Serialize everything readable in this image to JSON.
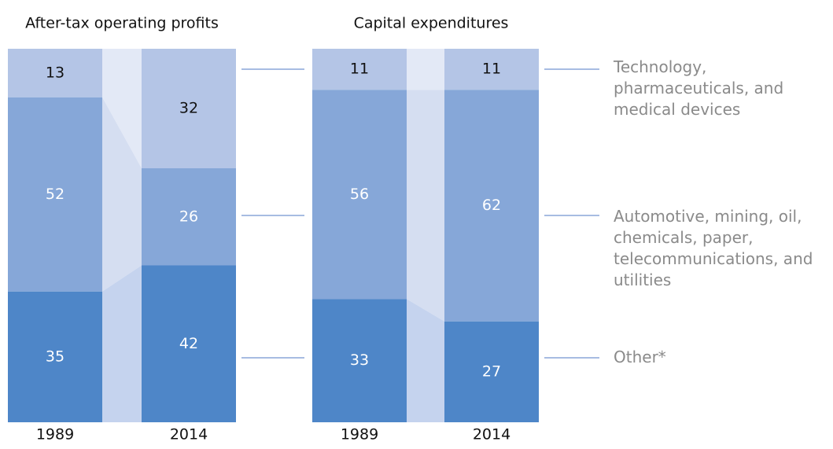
{
  "charts": [
    {
      "type": "stacked_bar",
      "title": "After-tax operating profits",
      "categories": [
        "1989",
        "2014"
      ],
      "ylim": [
        0,
        100
      ],
      "connector_colors": [
        "#e3e9f6",
        "#d5def1",
        "#c5d3ee"
      ],
      "series": [
        {
          "color": "#b4c5e6",
          "values": [
            13,
            32
          ]
        },
        {
          "color": "#86a7d8",
          "values": [
            52,
            26
          ]
        },
        {
          "color": "#4e86c8",
          "values": [
            35,
            42
          ]
        }
      ]
    },
    {
      "type": "stacked_bar",
      "title": "Capital expenditures",
      "categories": [
        "1989",
        "2014"
      ],
      "ylim": [
        0,
        100
      ],
      "connector_colors": [
        "#e3e9f6",
        "#d5def1",
        "#c5d3ee"
      ],
      "series": [
        {
          "name": "Technology, pharmaceuticals, and medical devices",
          "color": "#b4c5e6",
          "values": [
            11,
            11
          ]
        },
        {
          "name": "Automotive, mining, oil, chemicals, paper, telecommunications, and utilities",
          "color": "#86a7d8",
          "values": [
            56,
            62
          ]
        },
        {
          "name": "Other*",
          "color": "#4e86c8",
          "values": [
            33,
            27
          ]
        }
      ]
    }
  ]
}
